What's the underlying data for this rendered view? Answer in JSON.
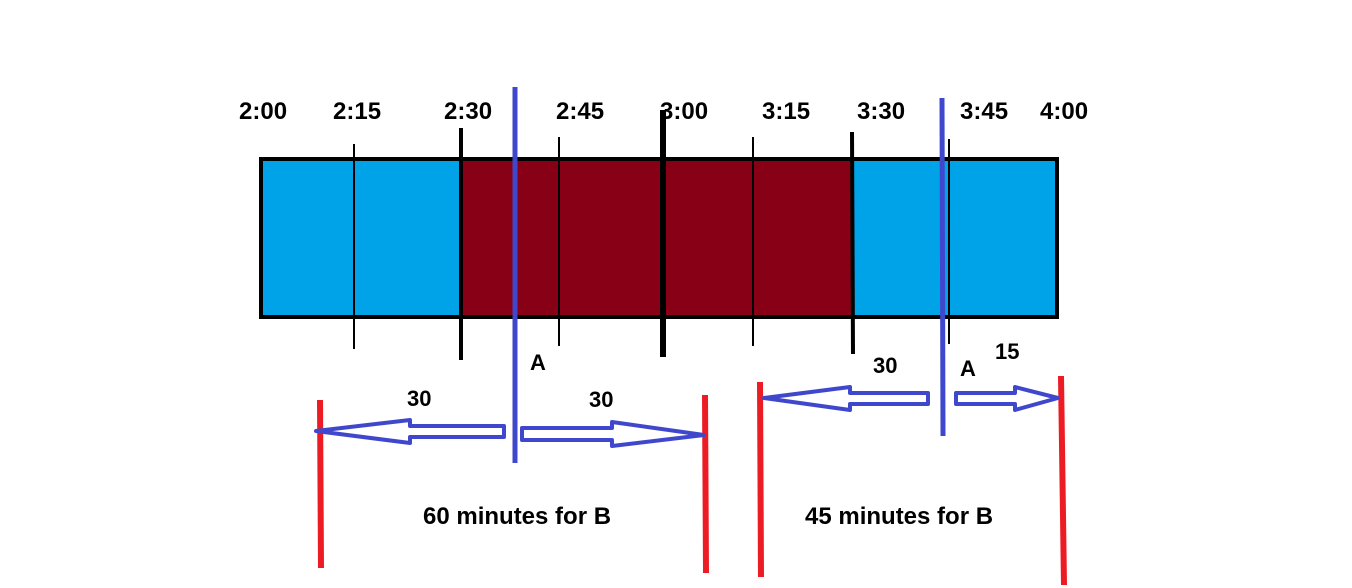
{
  "timeline": {
    "ticks": [
      "2:00",
      "2:15",
      "2:30",
      "2:45",
      "3:00",
      "3:15",
      "3:30",
      "3:45",
      "4:00"
    ],
    "major_ticks": [
      "2:30",
      "3:00",
      "3:30"
    ],
    "segments": [
      {
        "from": "2:00",
        "to": "2:30",
        "color": "#00a2e8"
      },
      {
        "from": "2:30",
        "to": "3:30",
        "color": "#880015"
      },
      {
        "from": "3:30",
        "to": "4:00",
        "color": "#00a2e8"
      }
    ]
  },
  "colors": {
    "marker_blue": "#3f48cc",
    "boundary_red": "#ed1c24",
    "outline": "#000000"
  },
  "left_case": {
    "marker_label": "A",
    "left_minutes": "30",
    "right_minutes": "30",
    "caption": "60 minutes for B"
  },
  "right_case": {
    "marker_label": "A",
    "left_minutes": "30",
    "right_minutes": "15",
    "caption": "45 minutes for B"
  }
}
